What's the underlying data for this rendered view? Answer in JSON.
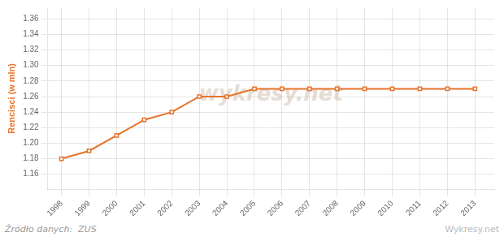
{
  "chart_data": {
    "type": "line",
    "ylabel": "Rencisci (w mln)",
    "x": [
      1998,
      1999,
      2000,
      2001,
      2002,
      2003,
      2004,
      2005,
      2006,
      2007,
      2008,
      2009,
      2010,
      2011,
      2012,
      2013
    ],
    "values": [
      1.18,
      1.19,
      1.21,
      1.23,
      1.24,
      1.26,
      1.26,
      1.27,
      1.27,
      1.27,
      1.27,
      1.27,
      1.27,
      1.27,
      1.27,
      1.27
    ],
    "color": "#E8732A",
    "marker": "square",
    "xlim": [
      1997.5,
      2013.7
    ],
    "xticks": [
      1998,
      1999,
      2000,
      2001,
      2002,
      2003,
      2004,
      2005,
      2006,
      2007,
      2008,
      2009,
      2010,
      2011,
      2012,
      2013
    ],
    "ylim": [
      1.14,
      1.375
    ],
    "yticks": [
      1.16,
      1.18,
      {
        "value": 1.2,
        "label": "1.20"
      },
      1.22,
      1.24,
      1.26,
      1.28,
      {
        "value": 1.3,
        "label": "1.30"
      },
      1.32,
      1.34,
      1.36
    ],
    "grid": true,
    "annotations": [
      "wykresy.net",
      "Źródło danych:  ZUS",
      "Wykresy.net"
    ]
  }
}
